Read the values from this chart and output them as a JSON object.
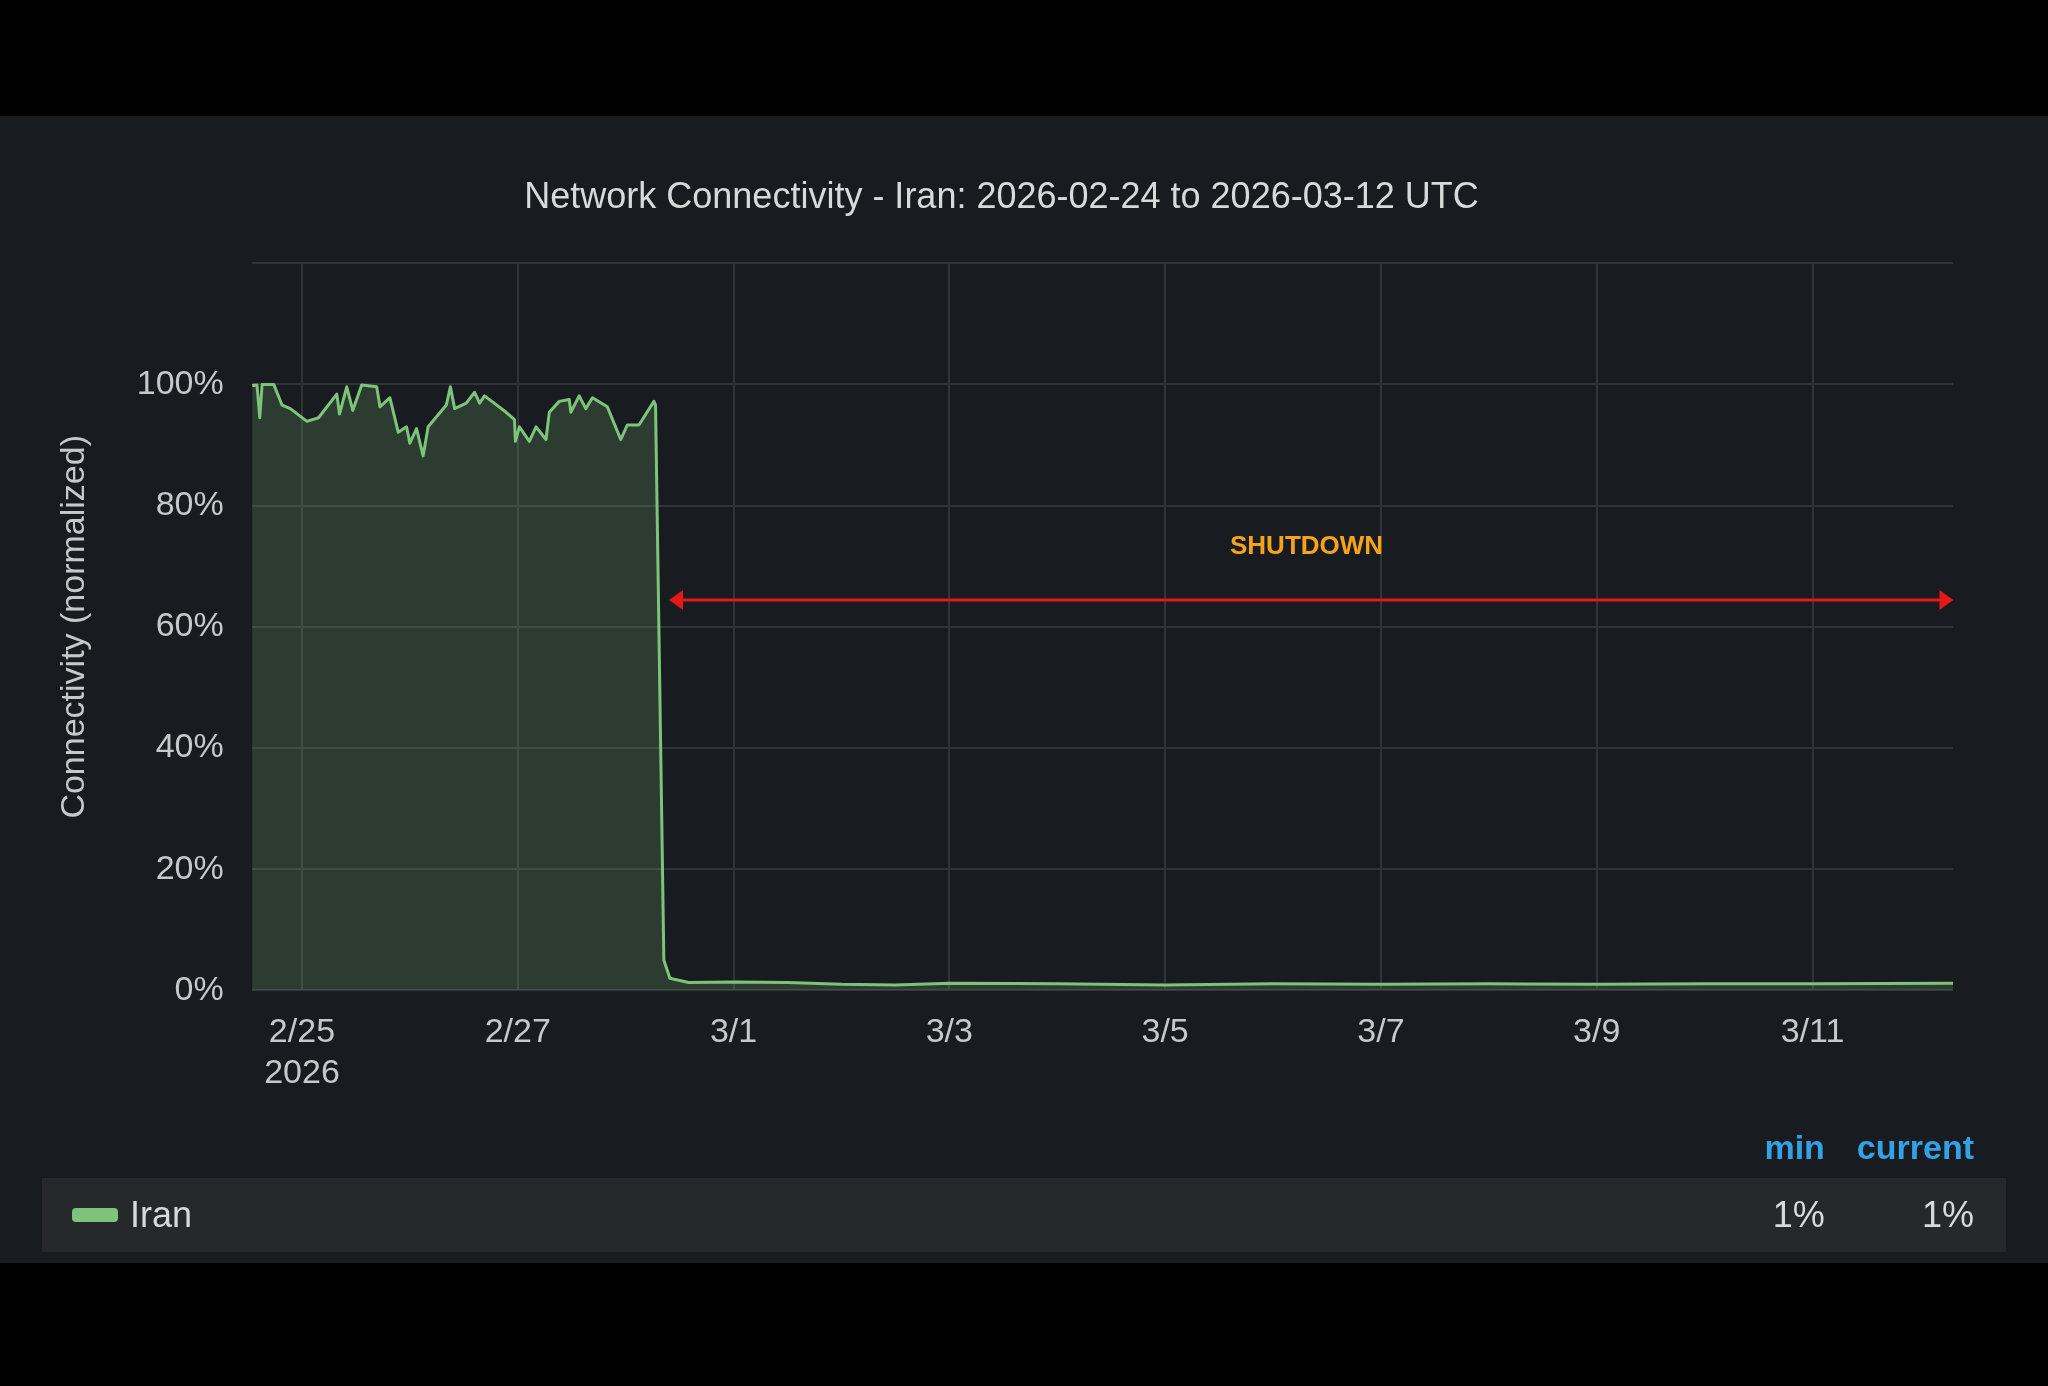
{
  "chart_data": {
    "type": "area",
    "title": "Network Connectivity - Iran: 2026-02-24 to 2026-03-12 UTC",
    "ylabel": "Connectivity (normalized)",
    "x": [
      "2026-02-24T12:55",
      "2026-02-24T14:00",
      "2026-02-24T14:37",
      "2026-02-24T15:08",
      "2026-02-24T17:43",
      "2026-02-24T19:34",
      "2026-02-24T21:25",
      "2026-02-25T01:07",
      "2026-02-25T03:41",
      "2026-02-25T07:45",
      "2026-02-25T08:21",
      "2026-02-25T09:58",
      "2026-02-25T11:18",
      "2026-02-25T13:17",
      "2026-02-25T16:37",
      "2026-02-25T17:21",
      "2026-02-25T19:34",
      "2026-02-25T21:25",
      "2026-02-25T23:16",
      "2026-02-26T00:00",
      "2026-02-26T01:29",
      "2026-02-26T02:57",
      "2026-02-26T04:04",
      "2026-02-26T08:07",
      "2026-02-26T09:01",
      "2026-02-26T09:58",
      "2026-02-26T12:33",
      "2026-02-26T14:24",
      "2026-02-26T15:31",
      "2026-02-26T16:37",
      "2026-02-26T21:25",
      "2026-02-26T23:16",
      "2026-02-26T23:29",
      "2026-02-27T00:22",
      "2026-02-27T02:35",
      "2026-02-27T04:04",
      "2026-02-27T06:17",
      "2026-02-27T07:01",
      "2026-02-27T09:14",
      "2026-02-27T11:27",
      "2026-02-27T11:49",
      "2026-02-27T13:40",
      "2026-02-27T15:08",
      "2026-02-27T16:37",
      "2026-02-27T19:56",
      "2026-02-27T21:25",
      "2026-02-27T22:54",
      "2026-02-28T00:22",
      "2026-02-28T02:58",
      "2026-02-28T06:17",
      "2026-02-28T06:39",
      "2026-02-28T08:30",
      "2026-02-28T09:50",
      "2026-02-28T14:00",
      "2026-03-01T00:00",
      "2026-03-01T12:00",
      "2026-03-02T00:00",
      "2026-03-02T12:00",
      "2026-03-03T00:00",
      "2026-03-04T00:00",
      "2026-03-05T00:00",
      "2026-03-06T00:00",
      "2026-03-07T00:00",
      "2026-03-08T00:00",
      "2026-03-09T00:00",
      "2026-03-10T00:00",
      "2026-03-11T00:00",
      "2026-03-12T07:15"
    ],
    "series": [
      {
        "name": "Iran",
        "color": "#7dc47a",
        "values": [
          99.8,
          99.9,
          94.5,
          100,
          100,
          96.6,
          96,
          93.9,
          94.5,
          98.4,
          95.1,
          99.6,
          95.7,
          99.9,
          99.6,
          96.3,
          97.8,
          92.1,
          93,
          90.3,
          92.7,
          88.2,
          93,
          96.6,
          99.6,
          96,
          96.9,
          98.7,
          96.9,
          98.1,
          95.4,
          94.2,
          90.6,
          93,
          90.6,
          93,
          90.9,
          95.4,
          97.2,
          97.5,
          95.4,
          98.1,
          96,
          97.8,
          96.3,
          93.6,
          90.9,
          93.3,
          93.3,
          97.2,
          96.6,
          5,
          2,
          1.3,
          1.4,
          1.3,
          1,
          0.9,
          1.2,
          1.1,
          0.9,
          1.1,
          1,
          1.1,
          1,
          1.1,
          1.1,
          1.2
        ]
      }
    ],
    "xlim": [
      "2026-02-24T12:50",
      "2026-03-12T07:15"
    ],
    "xticks": [
      {
        "value": "2026-02-25",
        "label": "2/25\n2026"
      },
      {
        "value": "2026-02-27",
        "label": "2/27"
      },
      {
        "value": "2026-03-01",
        "label": "3/1"
      },
      {
        "value": "2026-03-03",
        "label": "3/3"
      },
      {
        "value": "2026-03-05",
        "label": "3/5"
      },
      {
        "value": "2026-03-07",
        "label": "3/7"
      },
      {
        "value": "2026-03-09",
        "label": "3/9"
      },
      {
        "value": "2026-03-11",
        "label": "3/11"
      }
    ],
    "ylim": [
      0,
      120
    ],
    "yticks": [
      {
        "value": 0,
        "label": "0%"
      },
      {
        "value": 20,
        "label": "20%"
      },
      {
        "value": 40,
        "label": "40%"
      },
      {
        "value": 60,
        "label": "60%"
      },
      {
        "value": 80,
        "label": "80%"
      },
      {
        "value": 100,
        "label": "100%"
      },
      {
        "value": 120,
        "label": null
      }
    ],
    "annotations": [
      "SHUTDOWN",
      "min",
      "current",
      "1%",
      "1%"
    ],
    "grid": true,
    "legend": "bottom",
    "marker": "none",
    "line_style": "solid"
  }
}
